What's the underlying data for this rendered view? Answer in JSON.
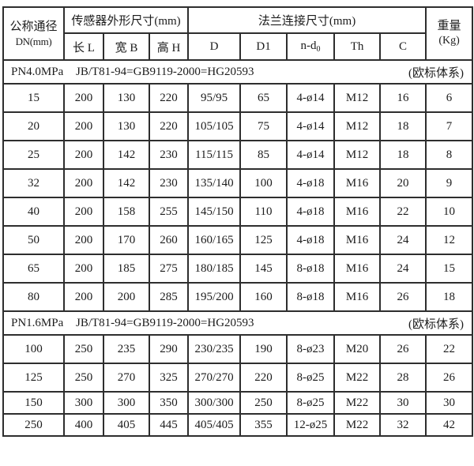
{
  "table": {
    "border_color": "#2e2e2e",
    "text_color": "#1c1c1c",
    "background_color": "#ffffff",
    "header": {
      "dn_line1": "公称通径",
      "dn_line2": "DN(mm)",
      "group_sensor": "传感器外形尺寸(mm)",
      "group_flange": "法兰连接尺寸(mm)",
      "weight_line1": "重量",
      "weight_line2": "(Kg)",
      "sub_l": "长 L",
      "sub_b": "宽 B",
      "sub_h": "高 H",
      "sub_d": "D",
      "sub_d1": "D1",
      "nd_base": "n-d",
      "nd_sub": "0",
      "sub_th": "Th",
      "sub_c": "C"
    },
    "sections": [
      {
        "pressure": "PN4.0MPa",
        "standard": "JB/T81-94=GB9119-2000=HG20593",
        "note": "(欧标体系)",
        "rows": [
          [
            "15",
            "200",
            "130",
            "220",
            "95/95",
            "65",
            "4-ø14",
            "M12",
            "16",
            "6"
          ],
          [
            "20",
            "200",
            "130",
            "220",
            "105/105",
            "75",
            "4-ø14",
            "M12",
            "18",
            "7"
          ],
          [
            "25",
            "200",
            "142",
            "230",
            "115/115",
            "85",
            "4-ø14",
            "M12",
            "18",
            "8"
          ],
          [
            "32",
            "200",
            "142",
            "230",
            "135/140",
            "100",
            "4-ø18",
            "M16",
            "20",
            "9"
          ],
          [
            "40",
            "200",
            "158",
            "255",
            "145/150",
            "110",
            "4-ø18",
            "M16",
            "22",
            "10"
          ],
          [
            "50",
            "200",
            "170",
            "260",
            "160/165",
            "125",
            "4-ø18",
            "M16",
            "24",
            "12"
          ],
          [
            "65",
            "200",
            "185",
            "275",
            "180/185",
            "145",
            "8-ø18",
            "M16",
            "24",
            "15"
          ],
          [
            "80",
            "200",
            "200",
            "285",
            "195/200",
            "160",
            "8-ø18",
            "M16",
            "26",
            "18"
          ]
        ]
      },
      {
        "pressure": "PN1.6MPa",
        "standard": "JB/T81-94=GB9119-2000=HG20593",
        "note": "(欧标体系)",
        "rows": [
          [
            "100",
            "250",
            "235",
            "290",
            "230/235",
            "190",
            "8-ø23",
            "M20",
            "26",
            "22"
          ],
          [
            "125",
            "250",
            "270",
            "325",
            "270/270",
            "220",
            "8-ø25",
            "M22",
            "28",
            "26"
          ],
          [
            "150",
            "300",
            "300",
            "350",
            "300/300",
            "250",
            "8-ø25",
            "M22",
            "30",
            "30"
          ],
          [
            "250",
            "400",
            "405",
            "445",
            "405/405",
            "355",
            "12-ø25",
            "M22",
            "32",
            "42"
          ]
        ]
      }
    ]
  }
}
